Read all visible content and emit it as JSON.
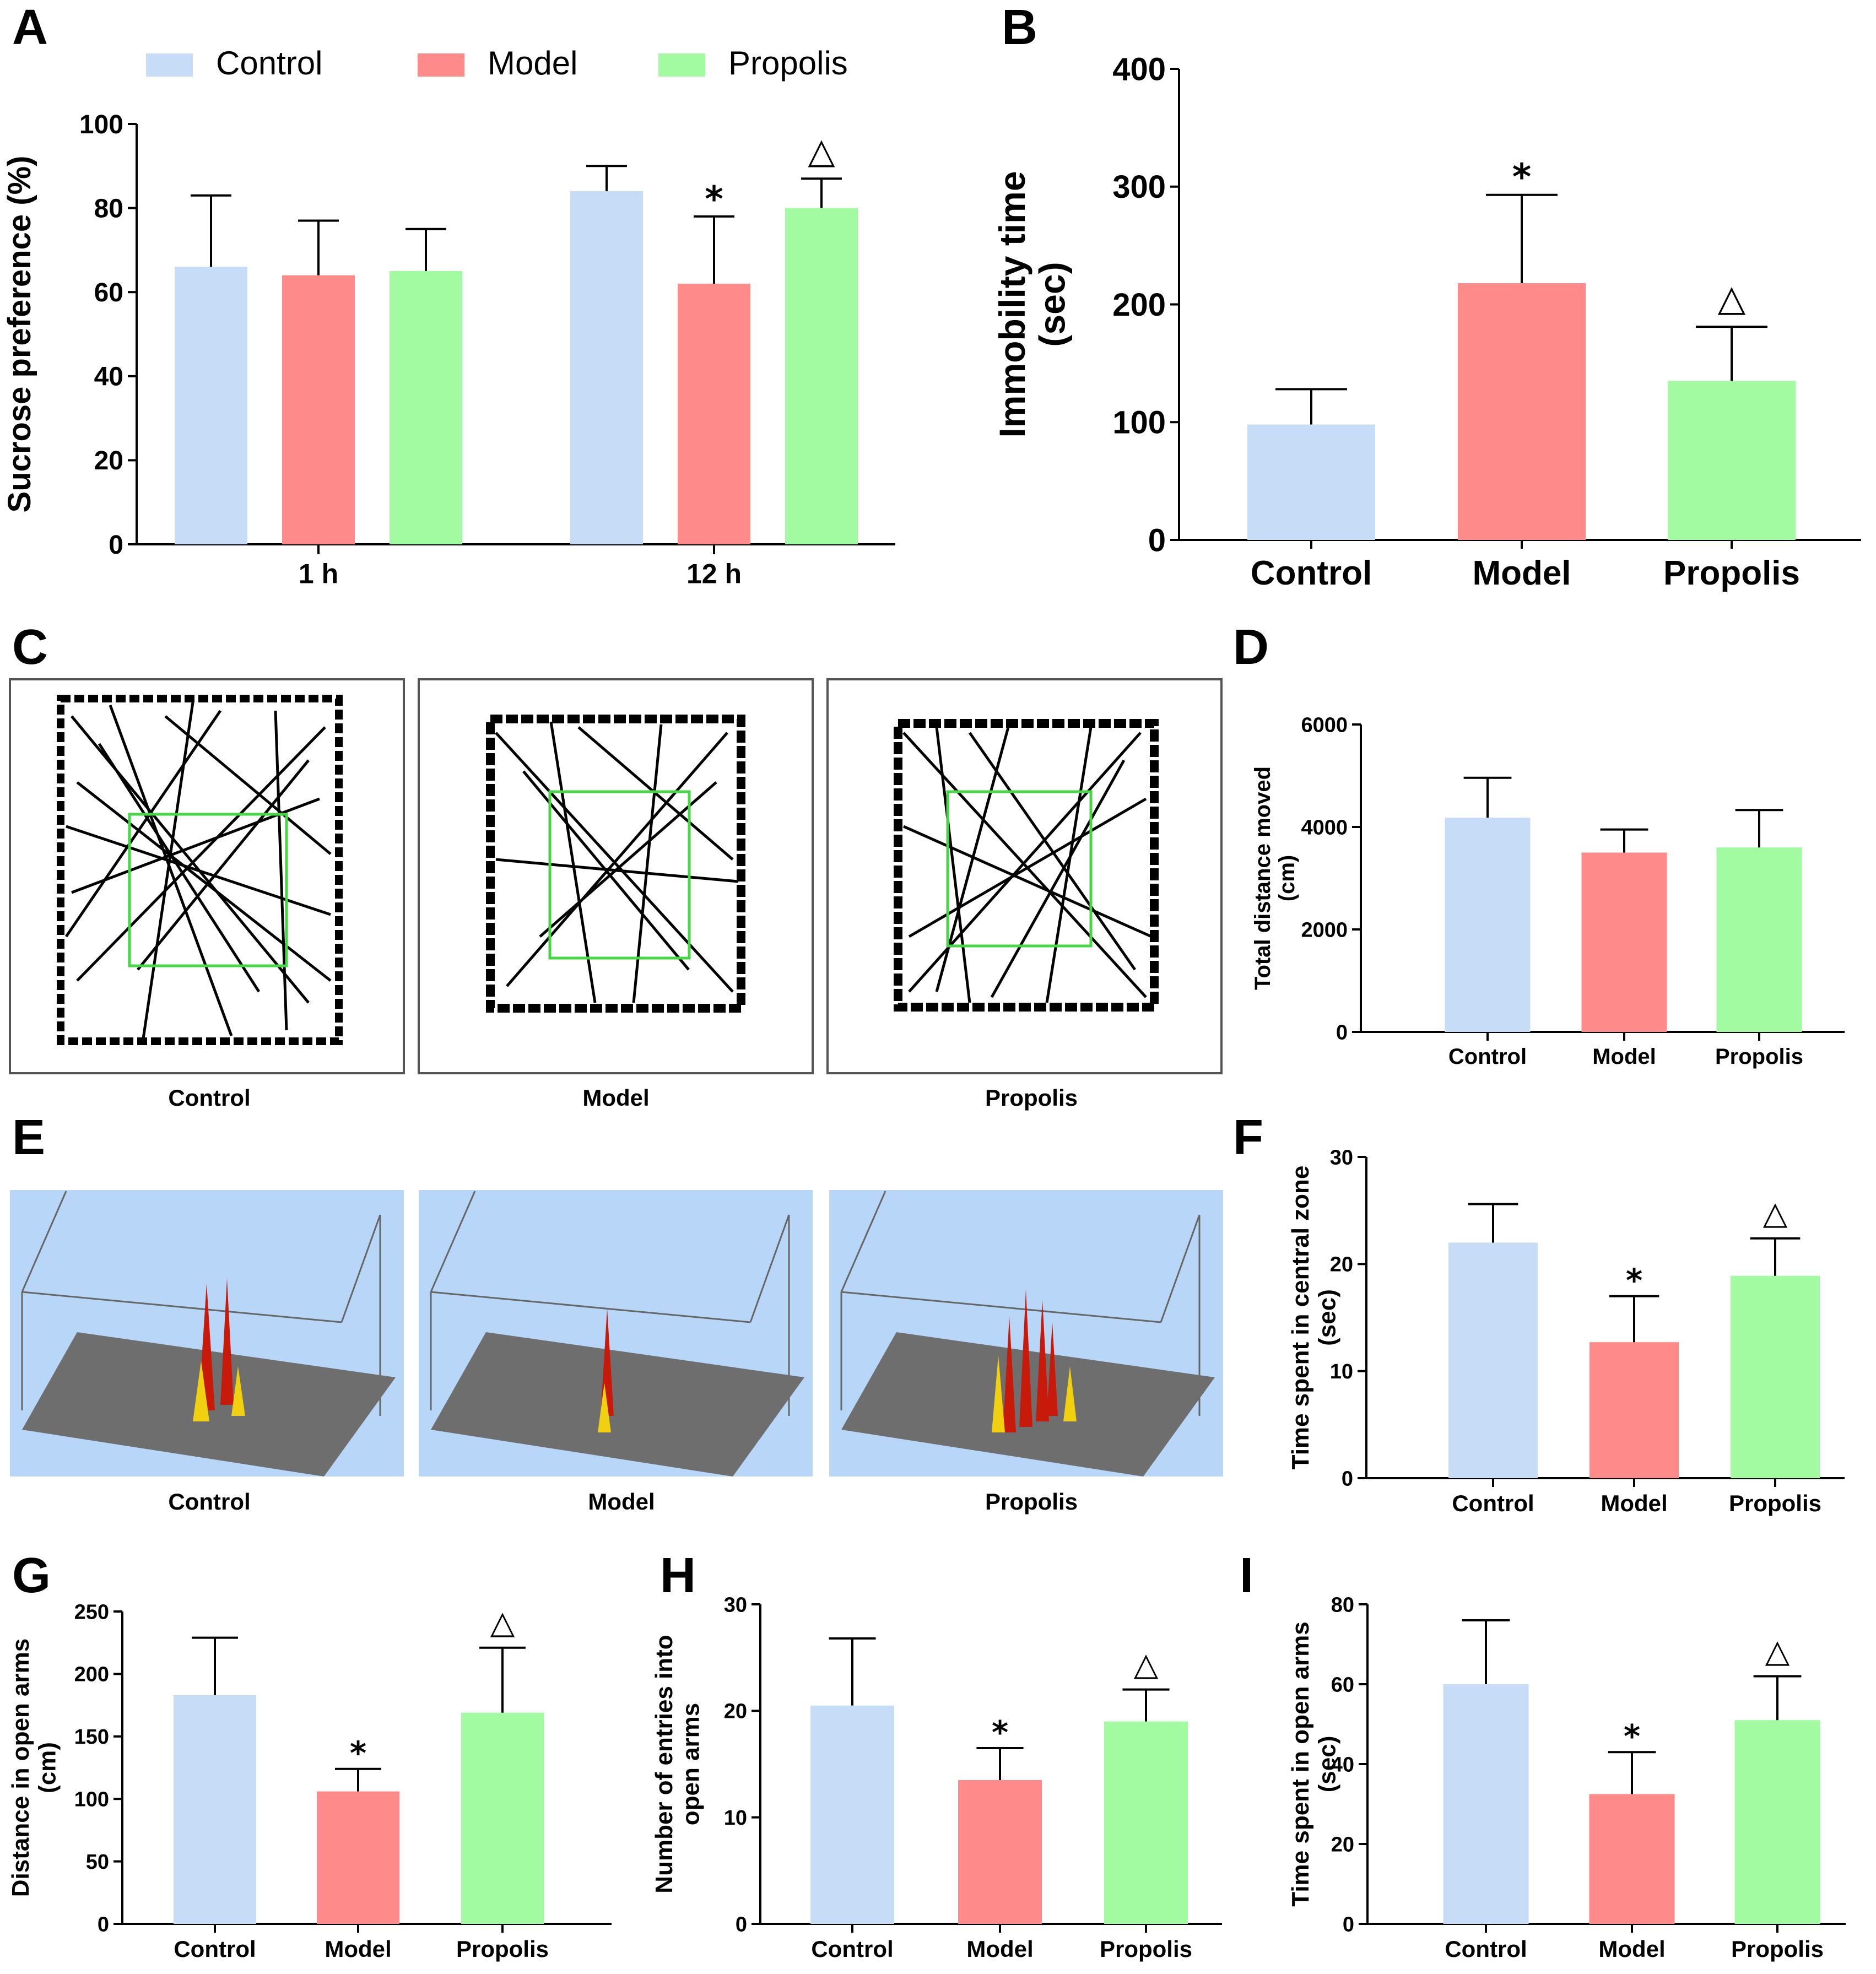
{
  "colors": {
    "control": "#c7ddf7",
    "model": "#ff8a8a",
    "propolis": "#a2fba0",
    "arena_bg": "#b8d6f7",
    "zone": "#45d845"
  },
  "legend": [
    {
      "label": "Control",
      "color": "#c7ddf7"
    },
    {
      "label": "Model",
      "color": "#ff8a8a"
    },
    {
      "label": "Propolis",
      "color": "#a2fba0"
    }
  ],
  "panels": {
    "A": {
      "letter": "A"
    },
    "B": {
      "letter": "B"
    },
    "C": {
      "letter": "C"
    },
    "D": {
      "letter": "D"
    },
    "E": {
      "letter": "E"
    },
    "F": {
      "letter": "F"
    },
    "G": {
      "letter": "G"
    },
    "H": {
      "letter": "H"
    },
    "I": {
      "letter": "I"
    }
  },
  "image_panels": {
    "C": {
      "captions": [
        "Control",
        "Model",
        "Propolis"
      ]
    },
    "E": {
      "captions": [
        "Control",
        "Model",
        "Propolis"
      ]
    }
  },
  "chart_data": [
    {
      "panel": "A",
      "type": "bar",
      "ylabel": "Sucrose preference (%)",
      "xlabel": "",
      "ylim": [
        0,
        100
      ],
      "yticks": [
        0,
        20,
        40,
        60,
        80,
        100
      ],
      "categories": [
        "1 h",
        "12 h"
      ],
      "series": [
        {
          "name": "Control",
          "color": "#c7ddf7",
          "values": [
            66,
            84
          ],
          "errors": [
            17,
            6
          ],
          "marks": [
            "",
            ""
          ]
        },
        {
          "name": "Model",
          "color": "#ff8a8a",
          "values": [
            64,
            62
          ],
          "errors": [
            13,
            16
          ],
          "marks": [
            "",
            "*"
          ]
        },
        {
          "name": "Propolis",
          "color": "#a2fba0",
          "values": [
            65,
            80
          ],
          "errors": [
            10,
            7
          ],
          "marks": [
            "",
            "△"
          ]
        }
      ]
    },
    {
      "panel": "B",
      "type": "bar",
      "ylabel": "Immobility time (sec)",
      "xlabel": "",
      "ylim": [
        0,
        400
      ],
      "yticks": [
        0,
        100,
        200,
        300,
        400
      ],
      "categories": [
        "Control",
        "Model",
        "Propolis"
      ],
      "values": [
        98,
        218,
        135
      ],
      "errors": [
        30,
        75,
        46
      ],
      "marks": [
        "",
        "*",
        "△"
      ]
    },
    {
      "panel": "D",
      "type": "bar",
      "ylabel": "Total distance moved (cm)",
      "xlabel": "",
      "ylim": [
        0,
        6000
      ],
      "yticks": [
        0,
        2000,
        4000,
        6000
      ],
      "categories": [
        "Control",
        "Model",
        "Propolis"
      ],
      "values": [
        4180,
        3500,
        3600
      ],
      "errors": [
        780,
        450,
        730
      ],
      "marks": [
        "",
        "",
        ""
      ]
    },
    {
      "panel": "F",
      "type": "bar",
      "ylabel": "Time spent in central zone (sec)",
      "xlabel": "",
      "ylim": [
        0,
        30
      ],
      "yticks": [
        0,
        10,
        20,
        30
      ],
      "categories": [
        "Control",
        "Model",
        "Propolis"
      ],
      "values": [
        22,
        12.7,
        18.9
      ],
      "errors": [
        3.6,
        4.3,
        3.5
      ],
      "marks": [
        "",
        "*",
        "△"
      ]
    },
    {
      "panel": "G",
      "type": "bar",
      "ylabel": "Distance in open arms (cm)",
      "xlabel": "",
      "ylim": [
        0,
        250
      ],
      "yticks": [
        0,
        50,
        100,
        150,
        200,
        250
      ],
      "categories": [
        "Control",
        "Model",
        "Propolis"
      ],
      "values": [
        183,
        106,
        169
      ],
      "errors": [
        46,
        18,
        52
      ],
      "marks": [
        "",
        "*",
        "△"
      ]
    },
    {
      "panel": "H",
      "type": "bar",
      "ylabel": "Number of entries into open arms",
      "xlabel": "",
      "ylim": [
        0,
        30
      ],
      "yticks": [
        0,
        10,
        20,
        30
      ],
      "categories": [
        "Control",
        "Model",
        "Propolis"
      ],
      "values": [
        20.5,
        13.5,
        19
      ],
      "errors": [
        6.3,
        3,
        3
      ],
      "marks": [
        "",
        "*",
        "△"
      ]
    },
    {
      "panel": "I",
      "type": "bar",
      "ylabel": "Time spent in open arms (sec)",
      "xlabel": "",
      "ylim": [
        0,
        80
      ],
      "yticks": [
        0,
        20,
        40,
        60,
        80
      ],
      "categories": [
        "Control",
        "Model",
        "Propolis"
      ],
      "values": [
        60,
        32.5,
        51
      ],
      "errors": [
        16,
        10.5,
        11
      ],
      "marks": [
        "",
        "*",
        "△"
      ]
    }
  ]
}
